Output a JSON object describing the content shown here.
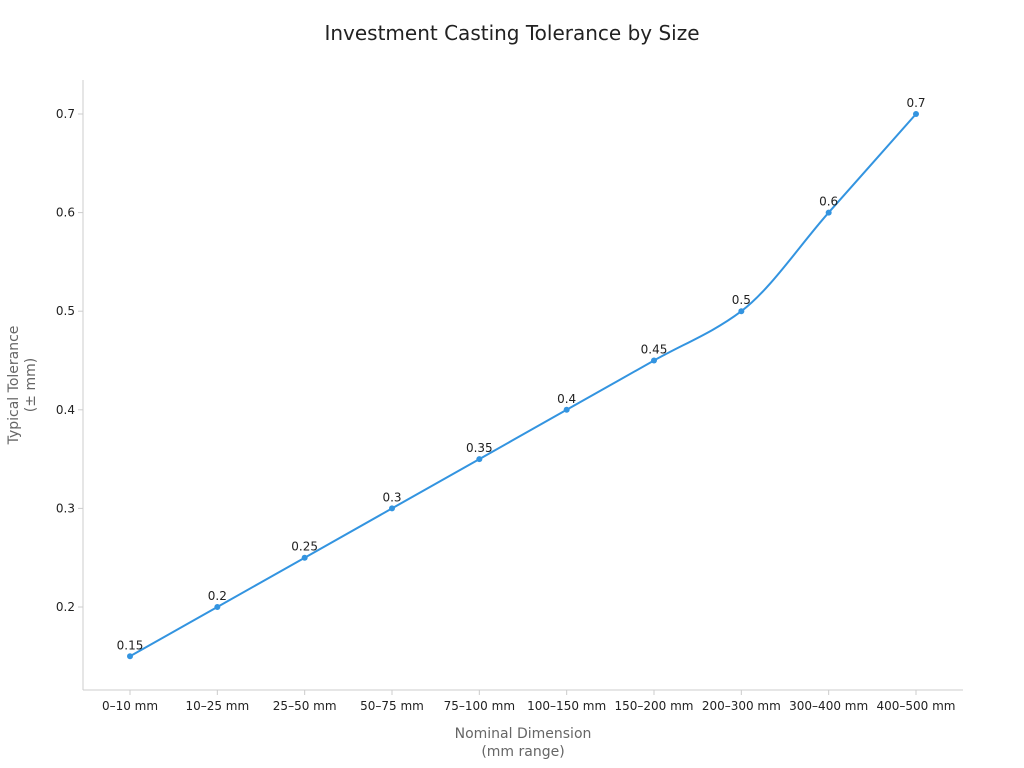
{
  "chart_data": {
    "type": "line",
    "title": "Investment Casting Tolerance by Size",
    "xlabel_lines": [
      "Nominal Dimension",
      "(mm range)"
    ],
    "ylabel_lines": [
      "Typical Tolerance",
      "(± mm)"
    ],
    "categories": [
      "0–10 mm",
      "10–25 mm",
      "25–50 mm",
      "50–75 mm",
      "75–100 mm",
      "100–150 mm",
      "150–200 mm",
      "200–300 mm",
      "300–400 mm",
      "400–500 mm"
    ],
    "values": [
      0.15,
      0.2,
      0.25,
      0.3,
      0.35,
      0.4,
      0.45,
      0.5,
      0.6,
      0.7
    ],
    "data_labels": [
      "0.15",
      "0.2",
      "0.25",
      "0.3",
      "0.35",
      "0.4",
      "0.45",
      "0.5",
      "0.6",
      "0.7"
    ],
    "yticks": [
      0.2,
      0.3,
      0.4,
      0.5,
      0.6,
      0.7
    ],
    "ytick_labels": [
      "0.2",
      "0.3",
      "0.4",
      "0.5",
      "0.6",
      "0.7"
    ],
    "ylim": [
      0.115,
      0.735
    ],
    "grid": false,
    "legend": "none",
    "line_color": "#3394e0"
  }
}
